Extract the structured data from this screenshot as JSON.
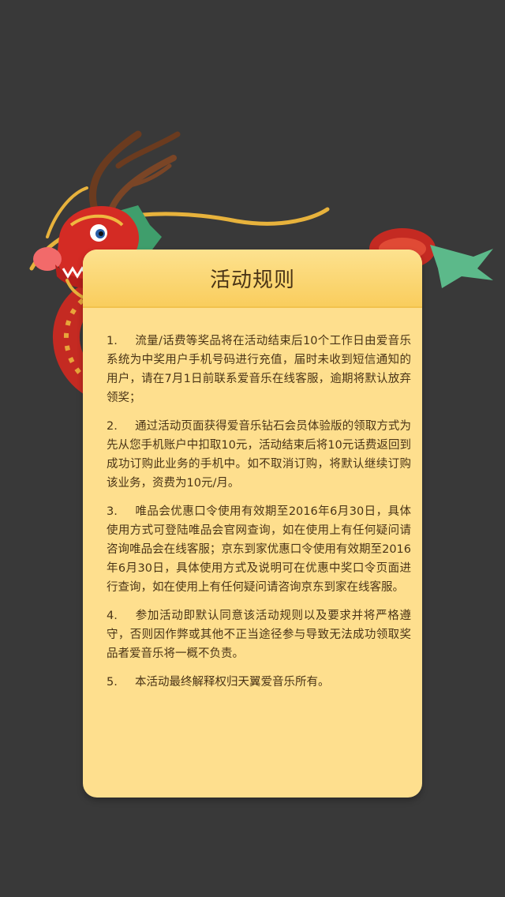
{
  "card": {
    "title": "活动规则"
  },
  "rules": [
    {
      "num": "1.",
      "text": "流量/话费等奖品将在活动结束后10个工作日由爱音乐系统为中奖用户手机号码进行充值，届时未收到短信通知的用户，请在7月1日前联系爱音乐在线客服，逾期将默认放弃领奖；"
    },
    {
      "num": "2.",
      "text": "通过活动页面获得爱音乐钻石会员体验版的领取方式为先从您手机账户中扣取10元，活动结束后将10元话费返回到成功订购此业务的手机中。如不取消订购，将默认继续订购该业务，资费为10元/月。"
    },
    {
      "num": "3.",
      "text": "唯品会优惠口令使用有效期至2016年6月30日，具体使用方式可登陆唯品会官网查询，如在使用上有任何疑问请咨询唯品会在线客服；京东到家优惠口令使用有效期至2016年6月30日，具体使用方式及说明可在优惠中奖口令页面进行查询，如在使用上有任何疑问请咨询京东到家在线客服。"
    },
    {
      "num": "4.",
      "text": "参加活动即默认同意该活动规则以及要求并将严格遵守，否则因作弊或其他不正当途径参与导致无法成功领取奖品者爱音乐将一概不负责。"
    },
    {
      "num": "5.",
      "text": "本活动最终解释权归天翼爱音乐所有。"
    }
  ],
  "colors": {
    "background": "#393939",
    "card": "#fedf8e",
    "header": "#f9cd5d",
    "text": "#4a3416"
  }
}
